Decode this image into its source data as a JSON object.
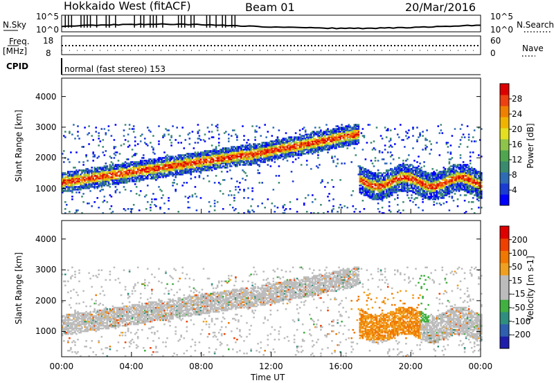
{
  "header": {
    "title": "Hokkaido West (fitACF)",
    "beam": "Beam 01",
    "date": "20/Mar/2016"
  },
  "strips": {
    "nsky_label": "N.Sky",
    "nsearch_label": "N.Search",
    "noise_ticks_left": [
      "10^5",
      "10^0"
    ],
    "noise_ticks_right": [
      "10^5",
      "10^0"
    ],
    "freq_label": "Freq.",
    "freq_unit": "[MHz]",
    "freq_ticks": [
      "18",
      "8"
    ],
    "nave_label": "Nave",
    "nave_ticks": [
      "60",
      "0"
    ],
    "cpid_label": "CPID",
    "cpid_text": "normal (fast stereo) 153"
  },
  "colors": {
    "power_scale": [
      "#0000ff",
      "#1a3cd2",
      "#2e6bb5",
      "#3a8a6e",
      "#4fa64f",
      "#8fc44a",
      "#e4e020",
      "#f0b400",
      "#f08000",
      "#ee4010",
      "#dd0000"
    ],
    "velocity_scale": [
      "#1e1eaa",
      "#2f5faf",
      "#2f8f7f",
      "#40b040",
      "#bcbcbc",
      "#bcbcbc",
      "#f0a020",
      "#f07800",
      "#f04000",
      "#e00000"
    ],
    "ground_scatter": "#bcbcbc"
  },
  "chart_data": [
    {
      "type": "heatmap",
      "name": "power",
      "ylabel": "Slant Range [km]",
      "ylim": [
        180,
        4600
      ],
      "yticks": [
        "4000",
        "3000",
        "2000",
        "1000"
      ],
      "xlim": [
        "00:00",
        "24:00"
      ],
      "colorbar_label": "Power [dB]",
      "colorbar_ticks": [
        "28",
        "24",
        "20",
        "16",
        "12",
        "8",
        "4"
      ]
    },
    {
      "type": "heatmap",
      "name": "velocity",
      "ylabel": "Slant Range [km]",
      "ylim": [
        180,
        4600
      ],
      "yticks": [
        "4000",
        "3000",
        "2000",
        "1000"
      ],
      "xlim": [
        "00:00",
        "24:00"
      ],
      "xlabel": "Time UT",
      "xticks": [
        "00:00",
        "04:00",
        "08:00",
        "12:00",
        "16:00",
        "20:00",
        "00:00"
      ],
      "colorbar_label": "Velocity [m s-1]",
      "colorbar_ticks": [
        "200",
        "100",
        "50",
        "15",
        "-15",
        "-50",
        "-100",
        "-200"
      ]
    }
  ]
}
